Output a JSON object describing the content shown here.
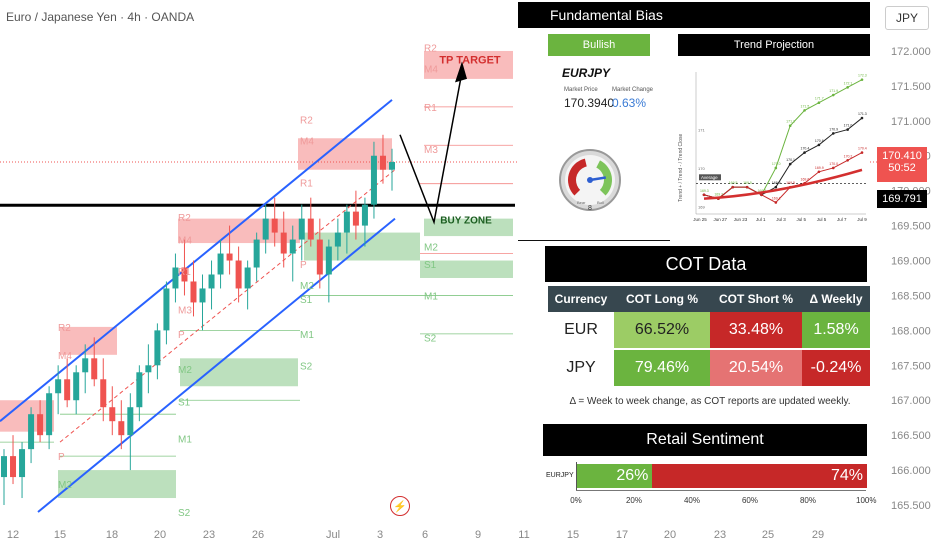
{
  "symbol_title": "Euro / Japanese Yen · 4h · OANDA",
  "currency_label": "JPY",
  "chart_data": {
    "type": "candlestick",
    "title": "Euro / Japanese Yen · 4h · OANDA",
    "y_unit": "JPY",
    "ylim": [
      165.4,
      172.3
    ],
    "y_ticks": [
      165.5,
      166.0,
      166.5,
      167.0,
      167.5,
      168.0,
      168.5,
      169.0,
      169.5,
      170.0,
      170.5,
      171.0,
      171.5,
      172.0
    ],
    "y_tick_labels": [
      "165.500",
      "166.000",
      "166.500",
      "167.000",
      "167.500",
      "168.000",
      "168.500",
      "169.000",
      "169.500",
      "170.000",
      "170.500",
      "171.000",
      "171.500",
      "172.000"
    ],
    "x_tick_labels": [
      "12",
      "15",
      "18",
      "20",
      "23",
      "26",
      "Jul",
      "3",
      "6",
      "9",
      "11",
      "15",
      "17",
      "20",
      "23",
      "25",
      "29"
    ],
    "price_labels": {
      "current": "170.410",
      "countdown": "50:52",
      "level": "169.791",
      "current_value": 170.41,
      "level_value": 169.791
    },
    "annotations": {
      "tp_target": "TP TARGET",
      "buy_zone": "BUY ZONE"
    },
    "pivot_labels": [
      "R2",
      "M4",
      "R1",
      "M3",
      "P",
      "M2",
      "S1",
      "M1",
      "S2"
    ],
    "candles": [
      [
        165.9,
        166.3,
        165.5,
        166.2
      ],
      [
        166.2,
        166.5,
        165.8,
        165.9
      ],
      [
        165.9,
        166.4,
        165.6,
        166.3
      ],
      [
        166.3,
        166.9,
        166.1,
        166.8
      ],
      [
        166.8,
        167.0,
        166.4,
        166.5
      ],
      [
        166.5,
        167.2,
        166.3,
        167.1
      ],
      [
        167.1,
        167.5,
        166.8,
        167.3
      ],
      [
        167.3,
        167.6,
        166.9,
        167.0
      ],
      [
        167.0,
        167.5,
        166.8,
        167.4
      ],
      [
        167.4,
        167.8,
        167.1,
        167.6
      ],
      [
        167.6,
        167.9,
        167.2,
        167.3
      ],
      [
        167.3,
        167.6,
        166.7,
        166.9
      ],
      [
        166.9,
        167.2,
        166.5,
        166.7
      ],
      [
        166.7,
        167.0,
        166.3,
        166.5
      ],
      [
        166.5,
        167.1,
        166.0,
        166.9
      ],
      [
        166.9,
        167.5,
        166.7,
        167.4
      ],
      [
        167.4,
        167.8,
        167.1,
        167.5
      ],
      [
        167.5,
        168.1,
        167.3,
        168.0
      ],
      [
        168.0,
        168.7,
        167.8,
        168.6
      ],
      [
        168.6,
        169.1,
        168.4,
        168.9
      ],
      [
        168.9,
        169.3,
        168.5,
        168.7
      ],
      [
        168.7,
        169.0,
        168.2,
        168.4
      ],
      [
        168.4,
        168.8,
        168.0,
        168.6
      ],
      [
        168.6,
        169.0,
        168.3,
        168.8
      ],
      [
        168.8,
        169.3,
        168.6,
        169.1
      ],
      [
        169.1,
        169.5,
        168.8,
        169.0
      ],
      [
        169.0,
        169.2,
        168.4,
        168.6
      ],
      [
        168.6,
        169.0,
        168.3,
        168.9
      ],
      [
        168.9,
        169.4,
        168.7,
        169.3
      ],
      [
        169.3,
        169.8,
        169.1,
        169.6
      ],
      [
        169.6,
        169.9,
        169.2,
        169.4
      ],
      [
        169.4,
        169.7,
        168.9,
        169.1
      ],
      [
        169.1,
        169.5,
        168.7,
        169.3
      ],
      [
        169.3,
        169.8,
        169.0,
        169.6
      ],
      [
        169.6,
        169.9,
        169.2,
        169.3
      ],
      [
        169.3,
        169.6,
        168.6,
        168.8
      ],
      [
        168.8,
        169.3,
        168.4,
        169.2
      ],
      [
        169.2,
        169.6,
        169.0,
        169.4
      ],
      [
        169.4,
        169.8,
        169.1,
        169.7
      ],
      [
        169.7,
        170.0,
        169.3,
        169.5
      ],
      [
        169.5,
        169.9,
        169.2,
        169.8
      ],
      [
        169.8,
        170.7,
        169.6,
        170.5
      ],
      [
        170.5,
        170.8,
        170.1,
        170.3
      ],
      [
        170.3,
        170.6,
        170.0,
        170.41
      ]
    ]
  },
  "fundamental": {
    "title": "Fundamental Bias",
    "bias": "Bullish",
    "pair": "EURJPY",
    "market_price_label": "Market Price",
    "market_change_label": "Market Change",
    "market_price": "170.3940",
    "market_change": "0.63%",
    "gauge_value": "8",
    "gauge_fill": 0.8,
    "gauge_min_label": "0",
    "gauge_max_label": "10",
    "gauge_bear_label": "Bear",
    "gauge_bull_label": "Bull"
  },
  "trend": {
    "title": "Trend Projection",
    "ylabel": "Trend + / Trend - / Trend Close",
    "x_labels": [
      "Jun 25",
      "Jun 27",
      "Jun 23",
      "Jul 1",
      "Jul 3",
      "Jul 5",
      "Jul 5",
      "Jul 7",
      "Jul 9"
    ],
    "y_labels": [
      "171",
      "170",
      "169"
    ],
    "average_label": "Average",
    "chart_data": {
      "type": "line",
      "series": [
        {
          "values": [
            169.3,
            169.2,
            169.5,
            169.5,
            169.3,
            170.0,
            171.1,
            171.5,
            171.7,
            171.9,
            172.1,
            172.3
          ]
        },
        {
          "values": [
            169.3,
            169.2,
            169.5,
            169.5,
            169.3,
            169.5,
            170.1,
            170.4,
            170.6,
            170.9,
            171.0,
            171.3
          ]
        },
        {
          "values": [
            169.3,
            169.2,
            169.5,
            169.5,
            169.3,
            169.1,
            169.5,
            169.6,
            169.9,
            170.0,
            170.2,
            170.4
          ]
        }
      ],
      "average": 169.6
    }
  },
  "cot": {
    "title": "COT Data",
    "headers": [
      "Currency",
      "COT Long %",
      "COT Short %",
      "Δ Weekly"
    ],
    "rows": [
      [
        "EUR",
        "66.52%",
        "33.48%",
        "1.58%"
      ],
      [
        "JPY",
        "79.46%",
        "20.54%",
        "-0.24%"
      ]
    ],
    "footnote": "Δ = Week to week change, as COT reports are updated weekly."
  },
  "retail": {
    "title": "Retail Sentiment",
    "pair": "EURJPY",
    "long_pct": "26%",
    "short_pct": "74%",
    "long_value": 26,
    "short_value": 74,
    "axis": [
      "0%",
      "20%",
      "40%",
      "60%",
      "80%",
      "100%"
    ]
  },
  "colors": {
    "bull": "#26a69a",
    "bear": "#ef5350",
    "channel": "#2962ff",
    "green_zone": "#a5d6a7",
    "red_zone": "#f7a6a6",
    "cot_green": "#7dc45a",
    "cot_red": "#c62828",
    "price_tag": "#ef5350"
  }
}
